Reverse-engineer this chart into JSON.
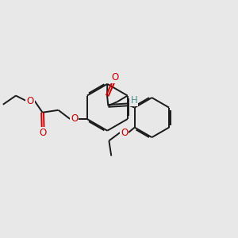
{
  "bg_color": "#e8e8e8",
  "bond_color": "#1a1a1a",
  "oxygen_color": "#cc0000",
  "cyan_color": "#4a8f8f",
  "lw": 1.4,
  "fs": 8.5,
  "dbo": 0.055,
  "fig_size": [
    3.0,
    3.0
  ],
  "dpi": 100,
  "xlim": [
    0,
    10
  ],
  "ylim": [
    0,
    10
  ]
}
